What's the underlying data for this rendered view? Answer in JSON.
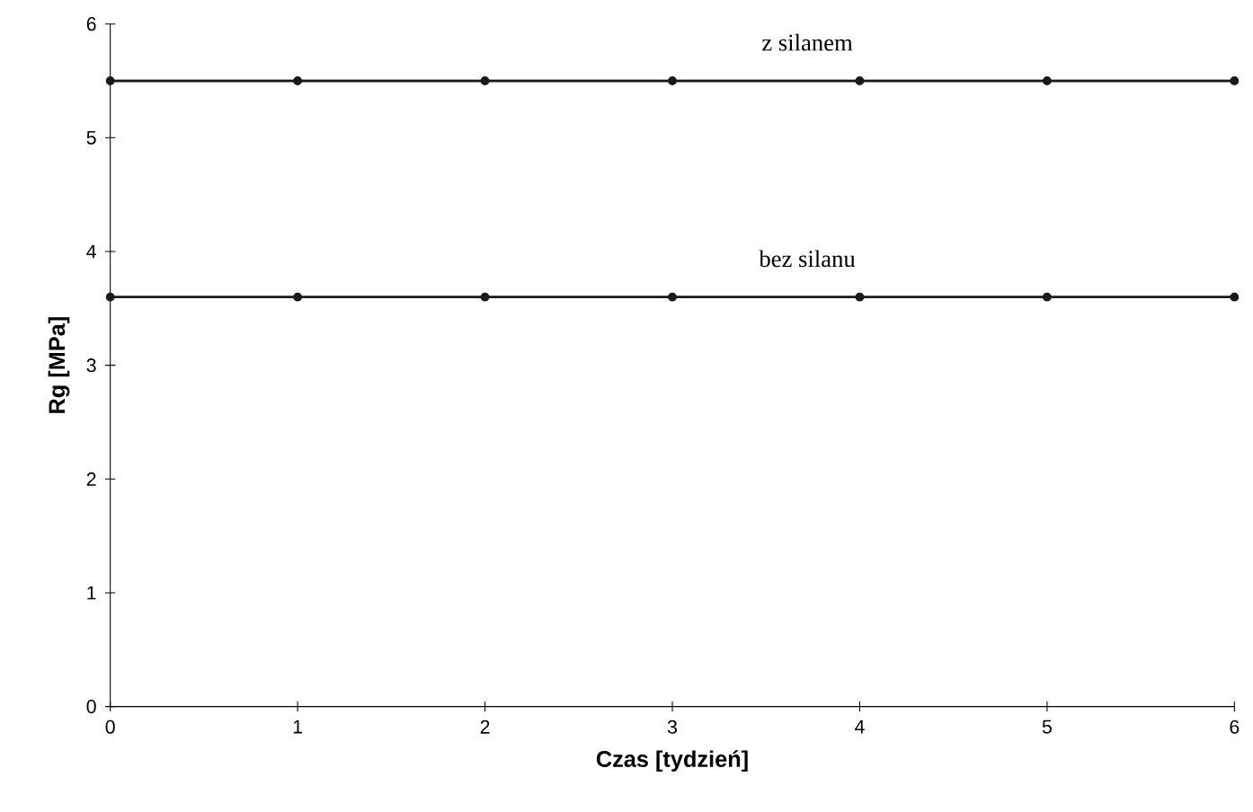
{
  "chart_data": {
    "type": "line",
    "xlabel": "Czas [tydzień]",
    "ylabel": "Rg [MPa]",
    "x": [
      0,
      1,
      2,
      3,
      4,
      5,
      6
    ],
    "series": [
      {
        "name": "z silanem",
        "color": "#1a1a1a",
        "values": [
          5.5,
          5.5,
          5.5,
          5.5,
          5.5,
          5.5,
          5.5
        ]
      },
      {
        "name": "bez silanu",
        "color": "#1a1a1a",
        "values": [
          3.6,
          3.6,
          3.6,
          3.6,
          3.6,
          3.6,
          3.6
        ]
      }
    ],
    "xlim": [
      0,
      6
    ],
    "ylim": [
      0,
      6
    ],
    "xticks": [
      0,
      1,
      2,
      3,
      4,
      5,
      6
    ],
    "yticks": [
      0,
      1,
      2,
      3,
      4,
      5,
      6
    ],
    "grid": false,
    "legend": false,
    "marker": "circle",
    "line_style": "solid"
  }
}
